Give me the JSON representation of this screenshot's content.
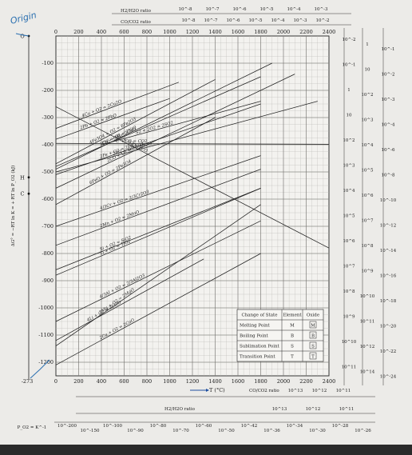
{
  "chart_data": {
    "type": "line",
    "xlabel": "T (°C)",
    "ylabel": "ΔG° = −RT ln K = + RT ln P_O2 (kJ)",
    "xlim": [
      -273,
      2400
    ],
    "ylim": [
      -1250,
      0
    ],
    "x_ticks": [
      "0",
      "200",
      "400",
      "600",
      "800",
      "1000",
      "1200",
      "1400",
      "1600",
      "1800",
      "2000",
      "2200",
      "2400"
    ],
    "y_ticks": [
      "-100",
      "-200",
      "-300",
      "-400",
      "-500",
      "-600",
      "-700",
      "-800",
      "-900",
      "-1000",
      "-1100",
      "-1200"
    ],
    "x_bottom_ticks": [
      "0",
      "200",
      "400",
      "600",
      "800",
      "1000",
      "1200",
      "1400",
      "1600",
      "1800",
      "2000",
      "2200",
      "2400"
    ],
    "absolute_zero_label": "-273",
    "left_markers": [
      "O",
      "H",
      "C"
    ],
    "top_scale_titles": [
      "H2/H2O ratio",
      "CO/CO2 ratio"
    ],
    "top_h2_ticks": [
      "10^-8",
      "10^-7",
      "10^-6",
      "10^-5",
      "10^-4",
      "10^-3"
    ],
    "top_co_ticks": [
      "10^-8",
      "10^-7",
      "10^-6",
      "10^-5",
      "10^-4",
      "10^-3",
      "10^-2"
    ],
    "bottom_scale_titles": [
      "CO/CO2 ratio",
      "H2/H2O ratio"
    ],
    "bottom_co_ticks": [
      "10^13",
      "10^12",
      "10^11"
    ],
    "bottom_h2_ticks": [
      "10^13",
      "10^12",
      "10^11"
    ],
    "po2_label": "P_O2 = K^-1",
    "po2_ticks": [
      "10^-200",
      "10^-150",
      "10^-100",
      "10^-90",
      "10^-80",
      "10^-70",
      "10^-60",
      "10^-50",
      "10^-42",
      "10^-36",
      "10^-34",
      "10^-30",
      "10^-28",
      "10^-26"
    ],
    "right_h2_ticks": [
      "10^-2",
      "10^-1",
      "1",
      "10",
      "10^2",
      "10^3",
      "10^4",
      "10^5",
      "10^6",
      "10^7",
      "10^8",
      "10^9",
      "10^10",
      "10^11"
    ],
    "right_co_ticks": [
      "1",
      "10",
      "10^2",
      "10^3",
      "10^4",
      "10^5",
      "10^6",
      "10^7",
      "10^8",
      "10^9",
      "10^10",
      "10^11",
      "10^12",
      "10^14"
    ],
    "right_po2_ticks": [
      "10^-1",
      "10^-2",
      "10^-3",
      "10^-4",
      "10^-6",
      "10^-8",
      "10^-10",
      "10^-12",
      "10^-14",
      "10^-16",
      "10^-18",
      "10^-20",
      "10^-22",
      "10^-24"
    ],
    "series": [
      {
        "name": "4Cu + O2 = 2Cu2O",
        "x": [
          0,
          1080
        ],
        "y": [
          -340,
          -170
        ]
      },
      {
        "name": "2Pb + O2 = 2PbO",
        "x": [
          0,
          1000
        ],
        "y": [
          -380,
          -230
        ]
      },
      {
        "name": "4Fe3O4 + O2 = 6Fe2O3",
        "x": [
          0,
          1400
        ],
        "y": [
          -470,
          -160
        ]
      },
      {
        "name": "2Ni + O2 = 2NiO",
        "x": [
          0,
          1900
        ],
        "y": [
          -490,
          -100
        ]
      },
      {
        "name": "2Co + O2 = 2CoO",
        "x": [
          0,
          1800
        ],
        "y": [
          -480,
          -150
        ]
      },
      {
        "name": "2CO + O2 = 2CO2",
        "x": [
          0,
          2100
        ],
        "y": [
          -560,
          -140
        ]
      },
      {
        "name": "2H2 + O2 = 2H2O",
        "x": [
          0,
          2300
        ],
        "y": [
          -500,
          -240
        ]
      },
      {
        "name": "S2 + 2O2 = 2SO2",
        "x": [
          400,
          1800
        ],
        "y": [
          -400,
          -240
        ]
      },
      {
        "name": "2Fe + O2 = 2FeO",
        "x": [
          0,
          1800
        ],
        "y": [
          -510,
          -250
        ]
      },
      {
        "name": "6FeO + O2 = 2Fe3O4",
        "x": [
          0,
          1400
        ],
        "y": [
          -620,
          -300
        ]
      },
      {
        "name": "C + O2 = CO2",
        "x": [
          0,
          2400
        ],
        "y": [
          -395,
          -398
        ]
      },
      {
        "name": "Si + O2 = SiO2",
        "x": [
          0,
          1800
        ],
        "y": [
          -860,
          -560
        ]
      },
      {
        "name": "Ti + O2 = TiO2",
        "x": [
          0,
          1800
        ],
        "y": [
          -880,
          -560
        ]
      },
      {
        "name": "2Mn + O2 = 2MnO",
        "x": [
          0,
          1800
        ],
        "y": [
          -770,
          -490
        ]
      },
      {
        "name": "4/3Cr + O2 = 2/3Cr2O3",
        "x": [
          0,
          1800
        ],
        "y": [
          -700,
          -440
        ]
      },
      {
        "name": "2C + O2 = 2CO",
        "x": [
          0,
          2400
        ],
        "y": [
          -260,
          -780
        ]
      },
      {
        "name": "4/3Al + O2 = 2/3Al2O3",
        "x": [
          0,
          1800
        ],
        "y": [
          -1050,
          -680
        ]
      },
      {
        "name": "2Mg + O2 = 2MgO",
        "x": [
          0,
          1800
        ],
        "y": [
          -1140,
          -620
        ]
      },
      {
        "name": "4Li + O2 = 2Li2O",
        "x": [
          0,
          1300
        ],
        "y": [
          -1120,
          -820
        ]
      },
      {
        "name": "2Ca + O2 = 2CaO",
        "x": [
          0,
          1800
        ],
        "y": [
          -1210,
          -800
        ]
      }
    ],
    "legend": {
      "placement": "bottom-right",
      "headers": [
        "Change of State",
        "Element",
        "Oxide"
      ],
      "rows": [
        [
          "Melting Point",
          "M",
          "M"
        ],
        [
          "Boiling Point",
          "B",
          "B"
        ],
        [
          "Sublimation Point",
          "S",
          "S"
        ],
        [
          "Transition Point",
          "T",
          "T"
        ]
      ]
    }
  },
  "annotations": {
    "origin_handwritten": "Origin"
  }
}
